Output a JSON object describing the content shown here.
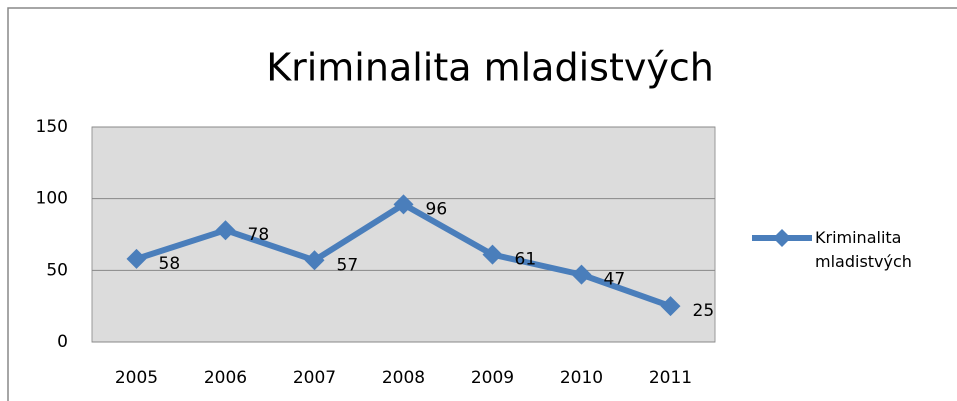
{
  "chart_data": {
    "type": "line",
    "title": "Kriminalita mladistvých",
    "categories": [
      "2005",
      "2006",
      "2007",
      "2008",
      "2009",
      "2010",
      "2011"
    ],
    "series": [
      {
        "name": "Kriminalita mladistvých",
        "color": "#4a7ebb",
        "values": [
          58,
          78,
          57,
          96,
          61,
          47,
          25
        ]
      }
    ],
    "ylim": [
      0,
      150
    ],
    "yticks": [
      0,
      50,
      100,
      150
    ],
    "grid": true,
    "legend": "right"
  }
}
